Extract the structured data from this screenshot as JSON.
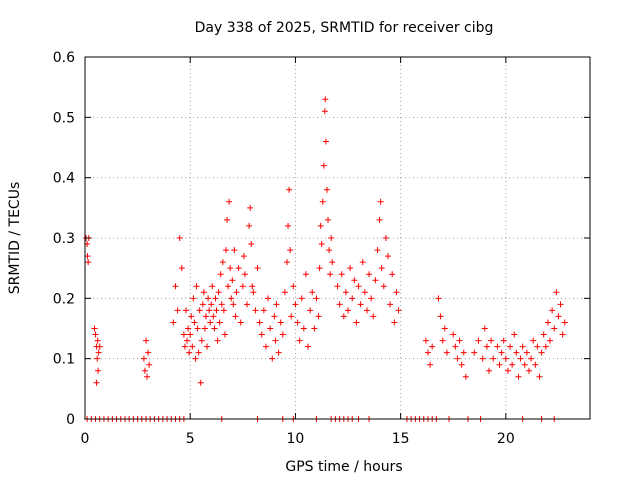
{
  "chart_data": {
    "type": "scatter",
    "title": "Day 338 of 2025, SRMTID for receiver cibg",
    "xlabel": "GPS time / hours",
    "ylabel": "SRMTID / TECUs",
    "xlim": [
      0,
      24
    ],
    "ylim": [
      0,
      0.6
    ],
    "x_ticks": [
      0,
      5,
      10,
      15,
      20
    ],
    "x_tick_labels": [
      "0",
      "5",
      "10",
      "15",
      "20"
    ],
    "y_ticks": [
      0,
      0.1,
      0.2,
      0.3,
      0.4,
      0.5,
      0.6
    ],
    "y_tick_labels": [
      "0",
      "0.1",
      "0.2",
      "0.3",
      "0.4",
      "0.5",
      "0.6"
    ],
    "grid": true,
    "marker": "plus",
    "color": "#ff0000",
    "series": [
      {
        "name": "SRMTID",
        "points": [
          [
            0.05,
            0.3
          ],
          [
            0.1,
            0.29
          ],
          [
            0.12,
            0.27
          ],
          [
            0.15,
            0.26
          ],
          [
            0.18,
            0.3
          ],
          [
            0.45,
            0.15
          ],
          [
            0.5,
            0.14
          ],
          [
            0.55,
            0.12
          ],
          [
            0.58,
            0.1
          ],
          [
            0.6,
            0.13
          ],
          [
            0.62,
            0.08
          ],
          [
            0.65,
            0.11
          ],
          [
            0.55,
            0.06
          ],
          [
            0.7,
            0.12
          ],
          [
            2.8,
            0.1
          ],
          [
            2.85,
            0.08
          ],
          [
            2.9,
            0.13
          ],
          [
            2.95,
            0.07
          ],
          [
            3.0,
            0.11
          ],
          [
            3.05,
            0.09
          ],
          [
            4.2,
            0.16
          ],
          [
            4.3,
            0.22
          ],
          [
            4.4,
            0.18
          ],
          [
            4.5,
            0.3
          ],
          [
            4.6,
            0.25
          ],
          [
            4.7,
            0.14
          ],
          [
            4.75,
            0.12
          ],
          [
            4.8,
            0.18
          ],
          [
            4.85,
            0.13
          ],
          [
            4.9,
            0.15
          ],
          [
            4.95,
            0.11
          ],
          [
            5.0,
            0.14
          ],
          [
            5.05,
            0.17
          ],
          [
            5.1,
            0.12
          ],
          [
            5.15,
            0.2
          ],
          [
            5.2,
            0.16
          ],
          [
            5.25,
            0.1
          ],
          [
            5.3,
            0.22
          ],
          [
            5.35,
            0.15
          ],
          [
            5.4,
            0.11
          ],
          [
            5.45,
            0.18
          ],
          [
            5.5,
            0.06
          ],
          [
            5.55,
            0.13
          ],
          [
            5.6,
            0.19
          ],
          [
            5.65,
            0.21
          ],
          [
            5.7,
            0.15
          ],
          [
            5.75,
            0.17
          ],
          [
            5.8,
            0.12
          ],
          [
            5.85,
            0.2
          ],
          [
            5.9,
            0.18
          ],
          [
            5.95,
            0.16
          ],
          [
            6.0,
            0.19
          ],
          [
            6.05,
            0.22
          ],
          [
            6.1,
            0.17
          ],
          [
            6.15,
            0.15
          ],
          [
            6.2,
            0.2
          ],
          [
            6.25,
            0.18
          ],
          [
            6.3,
            0.13
          ],
          [
            6.35,
            0.21
          ],
          [
            6.4,
            0.16
          ],
          [
            6.45,
            0.24
          ],
          [
            6.5,
            0.19
          ],
          [
            6.55,
            0.26
          ],
          [
            6.6,
            0.18
          ],
          [
            6.65,
            0.14
          ],
          [
            6.7,
            0.28
          ],
          [
            6.75,
            0.33
          ],
          [
            6.8,
            0.22
          ],
          [
            6.85,
            0.36
          ],
          [
            6.9,
            0.25
          ],
          [
            6.95,
            0.2
          ],
          [
            7.0,
            0.23
          ],
          [
            7.05,
            0.19
          ],
          [
            7.1,
            0.28
          ],
          [
            7.15,
            0.17
          ],
          [
            7.2,
            0.21
          ],
          [
            7.3,
            0.25
          ],
          [
            7.4,
            0.16
          ],
          [
            7.5,
            0.22
          ],
          [
            7.55,
            0.27
          ],
          [
            7.6,
            0.24
          ],
          [
            7.7,
            0.19
          ],
          [
            7.8,
            0.32
          ],
          [
            7.85,
            0.35
          ],
          [
            7.9,
            0.29
          ],
          [
            7.95,
            0.22
          ],
          [
            8.0,
            0.21
          ],
          [
            8.1,
            0.18
          ],
          [
            8.2,
            0.25
          ],
          [
            8.3,
            0.16
          ],
          [
            8.4,
            0.14
          ],
          [
            8.5,
            0.18
          ],
          [
            8.6,
            0.12
          ],
          [
            8.7,
            0.2
          ],
          [
            8.8,
            0.15
          ],
          [
            8.9,
            0.1
          ],
          [
            9.0,
            0.17
          ],
          [
            9.05,
            0.13
          ],
          [
            9.1,
            0.19
          ],
          [
            9.2,
            0.11
          ],
          [
            9.3,
            0.16
          ],
          [
            9.4,
            0.14
          ],
          [
            9.5,
            0.21
          ],
          [
            9.6,
            0.26
          ],
          [
            9.65,
            0.32
          ],
          [
            9.7,
            0.38
          ],
          [
            9.75,
            0.28
          ],
          [
            9.8,
            0.17
          ],
          [
            9.9,
            0.22
          ],
          [
            10.0,
            0.19
          ],
          [
            10.1,
            0.16
          ],
          [
            10.2,
            0.13
          ],
          [
            10.3,
            0.2
          ],
          [
            10.4,
            0.15
          ],
          [
            10.5,
            0.24
          ],
          [
            10.6,
            0.12
          ],
          [
            10.7,
            0.18
          ],
          [
            10.8,
            0.21
          ],
          [
            10.9,
            0.15
          ],
          [
            11.0,
            0.2
          ],
          [
            11.1,
            0.17
          ],
          [
            11.15,
            0.25
          ],
          [
            11.2,
            0.32
          ],
          [
            11.25,
            0.29
          ],
          [
            11.3,
            0.36
          ],
          [
            11.35,
            0.42
          ],
          [
            11.4,
            0.51
          ],
          [
            11.42,
            0.53
          ],
          [
            11.45,
            0.46
          ],
          [
            11.5,
            0.38
          ],
          [
            11.55,
            0.33
          ],
          [
            11.6,
            0.28
          ],
          [
            11.65,
            0.24
          ],
          [
            11.7,
            0.3
          ],
          [
            11.75,
            0.26
          ],
          [
            12.0,
            0.22
          ],
          [
            12.1,
            0.19
          ],
          [
            12.2,
            0.24
          ],
          [
            12.3,
            0.17
          ],
          [
            12.4,
            0.21
          ],
          [
            12.5,
            0.18
          ],
          [
            12.6,
            0.25
          ],
          [
            12.7,
            0.2
          ],
          [
            12.8,
            0.23
          ],
          [
            12.9,
            0.16
          ],
          [
            13.0,
            0.22
          ],
          [
            13.1,
            0.19
          ],
          [
            13.2,
            0.26
          ],
          [
            13.3,
            0.21
          ],
          [
            13.4,
            0.18
          ],
          [
            13.5,
            0.24
          ],
          [
            13.6,
            0.2
          ],
          [
            13.7,
            0.17
          ],
          [
            13.8,
            0.23
          ],
          [
            13.9,
            0.28
          ],
          [
            14.0,
            0.33
          ],
          [
            14.05,
            0.36
          ],
          [
            14.1,
            0.25
          ],
          [
            14.2,
            0.22
          ],
          [
            14.3,
            0.3
          ],
          [
            14.4,
            0.27
          ],
          [
            14.5,
            0.19
          ],
          [
            14.6,
            0.24
          ],
          [
            14.7,
            0.16
          ],
          [
            14.8,
            0.21
          ],
          [
            14.9,
            0.18
          ],
          [
            16.2,
            0.13
          ],
          [
            16.3,
            0.11
          ],
          [
            16.4,
            0.09
          ],
          [
            16.5,
            0.12
          ],
          [
            16.8,
            0.2
          ],
          [
            16.9,
            0.17
          ],
          [
            17.0,
            0.13
          ],
          [
            17.1,
            0.15
          ],
          [
            17.2,
            0.11
          ],
          [
            17.5,
            0.14
          ],
          [
            17.6,
            0.12
          ],
          [
            17.7,
            0.1
          ],
          [
            17.8,
            0.13
          ],
          [
            17.9,
            0.09
          ],
          [
            18.0,
            0.11
          ],
          [
            18.1,
            0.07
          ],
          [
            18.5,
            0.11
          ],
          [
            18.7,
            0.13
          ],
          [
            18.9,
            0.1
          ],
          [
            19.0,
            0.15
          ],
          [
            19.1,
            0.12
          ],
          [
            19.2,
            0.08
          ],
          [
            19.3,
            0.13
          ],
          [
            19.4,
            0.1
          ],
          [
            19.6,
            0.12
          ],
          [
            19.7,
            0.09
          ],
          [
            19.8,
            0.11
          ],
          [
            19.9,
            0.13
          ],
          [
            20.0,
            0.1
          ],
          [
            20.1,
            0.08
          ],
          [
            20.2,
            0.12
          ],
          [
            20.3,
            0.09
          ],
          [
            20.4,
            0.14
          ],
          [
            20.5,
            0.11
          ],
          [
            20.6,
            0.07
          ],
          [
            20.7,
            0.1
          ],
          [
            20.8,
            0.12
          ],
          [
            20.9,
            0.09
          ],
          [
            21.0,
            0.11
          ],
          [
            21.1,
            0.08
          ],
          [
            21.2,
            0.1
          ],
          [
            21.3,
            0.13
          ],
          [
            21.4,
            0.09
          ],
          [
            21.5,
            0.12
          ],
          [
            21.6,
            0.07
          ],
          [
            21.7,
            0.11
          ],
          [
            21.8,
            0.14
          ],
          [
            21.9,
            0.12
          ],
          [
            22.0,
            0.16
          ],
          [
            22.1,
            0.13
          ],
          [
            22.2,
            0.18
          ],
          [
            22.3,
            0.15
          ],
          [
            22.4,
            0.21
          ],
          [
            22.5,
            0.17
          ],
          [
            22.6,
            0.19
          ],
          [
            22.7,
            0.14
          ],
          [
            22.8,
            0.16
          ]
        ]
      }
    ],
    "zero_markers_x": [
      0.1,
      0.3,
      0.5,
      0.7,
      0.9,
      1.1,
      1.3,
      1.5,
      1.7,
      1.9,
      2.1,
      2.3,
      2.5,
      2.7,
      2.9,
      3.1,
      3.3,
      3.5,
      3.7,
      3.9,
      4.1,
      4.3,
      4.5,
      4.7,
      6.5,
      8.2,
      9.4,
      9.9,
      11.0,
      11.7,
      11.9,
      12.1,
      12.3,
      12.5,
      12.7,
      13.0,
      13.5,
      15.3,
      15.5,
      15.7,
      15.9,
      16.1,
      16.3,
      16.5,
      16.7,
      17.3,
      18.2,
      18.8,
      20.8,
      21.7,
      22.3
    ]
  }
}
